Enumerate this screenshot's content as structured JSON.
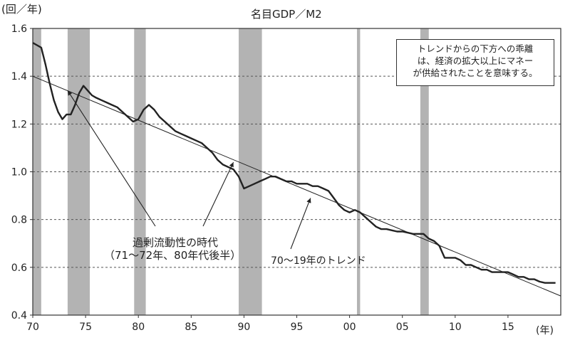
{
  "chart_data": {
    "type": "line",
    "title": "名目GDP／M2",
    "ylabel": "(回／年)",
    "xlabel": "(年)",
    "ylim": [
      0.4,
      1.6
    ],
    "xlim": [
      1970,
      2020
    ],
    "grid": "horizontal dashed",
    "y_ticks": [
      "0.4",
      "0.6",
      "0.8",
      "1.0",
      "1.2",
      "1.4",
      "1.6"
    ],
    "x_ticks": [
      "70",
      "75",
      "80",
      "85",
      "90",
      "95",
      "00",
      "05",
      "10",
      "15"
    ],
    "shaded_periods": [
      [
        1970.0,
        1970.8
      ],
      [
        1973.3,
        1975.4
      ],
      [
        1979.6,
        1980.7
      ],
      [
        1989.5,
        1991.7
      ],
      [
        2000.7,
        2001.0
      ],
      [
        2006.7,
        2007.5
      ]
    ],
    "series": [
      {
        "values": [
          [
            1970.0,
            1.54
          ],
          [
            1970.4,
            1.53
          ],
          [
            1970.8,
            1.52
          ],
          [
            1971.2,
            1.45
          ],
          [
            1971.6,
            1.37
          ],
          [
            1972.0,
            1.3
          ],
          [
            1972.4,
            1.25
          ],
          [
            1972.8,
            1.22
          ],
          [
            1973.2,
            1.24
          ],
          [
            1973.6,
            1.24
          ],
          [
            1974.0,
            1.28
          ],
          [
            1974.4,
            1.33
          ],
          [
            1974.8,
            1.36
          ],
          [
            1975.2,
            1.34
          ],
          [
            1975.6,
            1.32
          ],
          [
            1976.0,
            1.31
          ],
          [
            1976.5,
            1.3
          ],
          [
            1977.0,
            1.29
          ],
          [
            1977.5,
            1.28
          ],
          [
            1978.0,
            1.27
          ],
          [
            1978.5,
            1.25
          ],
          [
            1979.0,
            1.23
          ],
          [
            1979.5,
            1.21
          ],
          [
            1980.0,
            1.22
          ],
          [
            1980.5,
            1.26
          ],
          [
            1981.0,
            1.28
          ],
          [
            1981.5,
            1.26
          ],
          [
            1982.0,
            1.23
          ],
          [
            1982.5,
            1.21
          ],
          [
            1983.0,
            1.19
          ],
          [
            1983.5,
            1.17
          ],
          [
            1984.0,
            1.16
          ],
          [
            1984.5,
            1.15
          ],
          [
            1985.0,
            1.14
          ],
          [
            1985.5,
            1.13
          ],
          [
            1986.0,
            1.12
          ],
          [
            1986.5,
            1.1
          ],
          [
            1987.0,
            1.08
          ],
          [
            1987.5,
            1.05
          ],
          [
            1988.0,
            1.03
          ],
          [
            1988.5,
            1.02
          ],
          [
            1989.0,
            1.01
          ],
          [
            1989.5,
            0.98
          ],
          [
            1990.0,
            0.93
          ],
          [
            1990.5,
            0.94
          ],
          [
            1991.0,
            0.95
          ],
          [
            1991.5,
            0.96
          ],
          [
            1992.0,
            0.97
          ],
          [
            1992.5,
            0.98
          ],
          [
            1993.0,
            0.98
          ],
          [
            1993.5,
            0.97
          ],
          [
            1994.0,
            0.96
          ],
          [
            1994.5,
            0.96
          ],
          [
            1995.0,
            0.95
          ],
          [
            1995.5,
            0.95
          ],
          [
            1996.0,
            0.95
          ],
          [
            1996.5,
            0.94
          ],
          [
            1997.0,
            0.94
          ],
          [
            1997.5,
            0.93
          ],
          [
            1998.0,
            0.92
          ],
          [
            1998.5,
            0.89
          ],
          [
            1999.0,
            0.86
          ],
          [
            1999.5,
            0.84
          ],
          [
            2000.0,
            0.83
          ],
          [
            2000.5,
            0.84
          ],
          [
            2001.0,
            0.83
          ],
          [
            2001.5,
            0.81
          ],
          [
            2002.0,
            0.79
          ],
          [
            2002.5,
            0.77
          ],
          [
            2003.0,
            0.76
          ],
          [
            2003.5,
            0.76
          ],
          [
            2004.0,
            0.755
          ],
          [
            2004.5,
            0.75
          ],
          [
            2005.0,
            0.75
          ],
          [
            2005.5,
            0.745
          ],
          [
            2006.0,
            0.74
          ],
          [
            2006.5,
            0.74
          ],
          [
            2007.0,
            0.74
          ],
          [
            2007.5,
            0.72
          ],
          [
            2008.0,
            0.71
          ],
          [
            2008.5,
            0.69
          ],
          [
            2009.0,
            0.64
          ],
          [
            2009.5,
            0.64
          ],
          [
            2010.0,
            0.64
          ],
          [
            2010.5,
            0.63
          ],
          [
            2011.0,
            0.61
          ],
          [
            2011.5,
            0.61
          ],
          [
            2012.0,
            0.6
          ],
          [
            2012.5,
            0.59
          ],
          [
            2013.0,
            0.59
          ],
          [
            2013.5,
            0.58
          ],
          [
            2014.0,
            0.58
          ],
          [
            2014.5,
            0.58
          ],
          [
            2015.0,
            0.58
          ],
          [
            2015.5,
            0.57
          ],
          [
            2016.0,
            0.56
          ],
          [
            2016.5,
            0.56
          ],
          [
            2017.0,
            0.55
          ],
          [
            2017.5,
            0.55
          ],
          [
            2018.0,
            0.54
          ],
          [
            2018.5,
            0.535
          ],
          [
            2019.0,
            0.535
          ],
          [
            2019.5,
            0.535
          ]
        ]
      }
    ],
    "trend": {
      "from": [
        1970.0,
        1.4
      ],
      "to": [
        2020.0,
        0.48
      ]
    },
    "annotations": {
      "box_lines": [
        "トレンドからの下方への乖離",
        "は、経済の拡大以上にマネー",
        "が供給されたことを意味する。"
      ],
      "excess_label_lines": [
        "過剰流動性の時代",
        "（71～72年、80年代後半）"
      ],
      "trend_label": "70～19年のトレンド"
    }
  }
}
